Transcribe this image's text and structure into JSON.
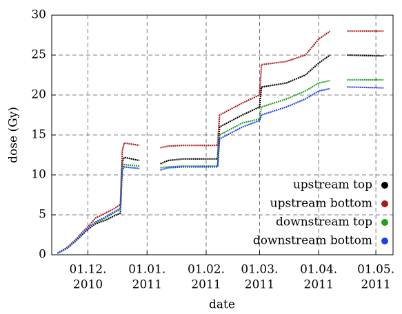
{
  "chart_data": {
    "type": "line",
    "x_label": "date",
    "y_label": "dose (Gy)",
    "x": [
      "2010-11-15",
      "2010-11-20",
      "2010-11-25",
      "2010-11-28",
      "2010-12-01",
      "2010-12-05",
      "2010-12-10",
      "2010-12-15",
      "2010-12-18",
      "2010-12-19",
      "2010-12-20",
      "2010-12-28",
      "2011-01-02",
      "2011-01-08",
      "2011-01-12",
      "2011-01-20",
      "2011-02-01",
      "2011-02-07",
      "2011-02-08",
      "2011-02-20",
      "2011-03-01",
      "2011-03-02",
      "2011-03-15",
      "2011-03-25",
      "2011-04-01",
      "2011-04-07",
      "2011-04-12",
      "2011-04-16",
      "2011-05-05"
    ],
    "series": [
      {
        "name": "upstream top",
        "color": "#000000",
        "values": [
          0.2,
          0.8,
          1.8,
          2.5,
          3.2,
          3.9,
          4.3,
          4.9,
          5.2,
          11.6,
          12.2,
          11.8,
          null,
          11.4,
          11.8,
          12.0,
          12.0,
          12.0,
          16.0,
          17.5,
          18.5,
          21.0,
          21.5,
          22.5,
          24.0,
          25.0,
          null,
          25.0,
          24.9
        ]
      },
      {
        "name": "upstream bottom",
        "color": "#b01818",
        "values": [
          0.2,
          0.9,
          2.0,
          2.8,
          3.5,
          4.6,
          5.2,
          5.8,
          6.3,
          13.0,
          14.0,
          13.7,
          null,
          13.4,
          13.6,
          13.7,
          13.7,
          13.7,
          17.5,
          19.0,
          20.0,
          23.8,
          24.2,
          25.0,
          27.0,
          28.0,
          null,
          28.0,
          28.0
        ]
      },
      {
        "name": "downstream top",
        "color": "#20a020",
        "values": [
          0.2,
          0.8,
          1.9,
          2.7,
          3.3,
          4.0,
          4.6,
          5.3,
          5.7,
          10.8,
          11.3,
          11.1,
          null,
          10.9,
          11.0,
          11.1,
          11.1,
          11.1,
          15.0,
          16.5,
          17.0,
          18.5,
          19.5,
          20.5,
          21.5,
          21.8,
          null,
          21.9,
          21.9
        ]
      },
      {
        "name": "downstream bottom",
        "color": "#1f3ff0",
        "values": [
          0.2,
          0.8,
          1.8,
          2.6,
          3.3,
          4.1,
          4.7,
          5.4,
          5.8,
          10.6,
          11.0,
          10.8,
          null,
          10.6,
          10.9,
          11.0,
          11.0,
          11.0,
          14.5,
          16.0,
          16.8,
          17.5,
          18.5,
          19.5,
          20.5,
          20.8,
          null,
          21.0,
          20.9
        ]
      }
    ],
    "xlim": [
      "2010-11-12",
      "2011-05-10"
    ],
    "xticks": [
      {
        "value": "2010-12-01",
        "label": [
          "01.12.",
          "2010"
        ]
      },
      {
        "value": "2011-01-01",
        "label": [
          "01.01.",
          "2011"
        ]
      },
      {
        "value": "2011-02-01",
        "label": [
          "01.02.",
          "2011"
        ]
      },
      {
        "value": "2011-03-01",
        "label": [
          "01.03.",
          "2011"
        ]
      },
      {
        "value": "2011-04-01",
        "label": [
          "01.04.",
          "2011"
        ]
      },
      {
        "value": "2011-05-01",
        "label": [
          "01.05.",
          "2011"
        ]
      }
    ],
    "ylim": [
      0,
      30
    ],
    "yticks": [
      0,
      5,
      10,
      15,
      20,
      25,
      30
    ],
    "grid": true,
    "legend": "lower right"
  }
}
